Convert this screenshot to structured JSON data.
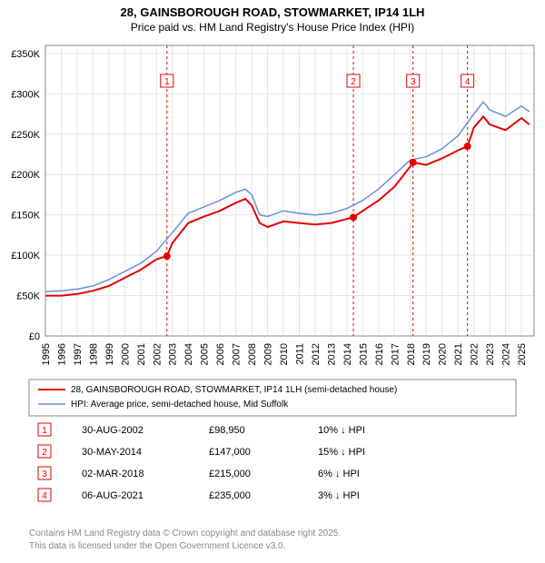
{
  "title_line1": "28, GAINSBOROUGH ROAD, STOWMARKET, IP14 1LH",
  "title_line2": "Price paid vs. HM Land Registry's House Price Index (HPI)",
  "chart": {
    "type": "line",
    "background_color": "#ffffff",
    "grid_color": "#e6e6e6",
    "plot_border_color": "#888888",
    "x_years": [
      1995,
      1996,
      1997,
      1998,
      1999,
      2000,
      2001,
      2002,
      2003,
      2004,
      2005,
      2006,
      2007,
      2008,
      2009,
      2010,
      2011,
      2012,
      2013,
      2014,
      2015,
      2016,
      2017,
      2018,
      2019,
      2020,
      2021,
      2022,
      2023,
      2024,
      2025
    ],
    "xlim": [
      1995,
      2025.8
    ],
    "ylim": [
      0,
      360000
    ],
    "y_ticks": [
      0,
      50000,
      100000,
      150000,
      200000,
      250000,
      300000,
      350000
    ],
    "y_tick_labels": [
      "£0",
      "£50K",
      "£100K",
      "£150K",
      "£200K",
      "£250K",
      "£300K",
      "£350K"
    ],
    "series": [
      {
        "name": "28, GAINSBOROUGH ROAD, STOWMARKET, IP14 1LH (semi-detached house)",
        "color": "#e60000",
        "line_width": 2,
        "data": [
          [
            1995,
            50000
          ],
          [
            1996,
            50000
          ],
          [
            1997,
            52000
          ],
          [
            1998,
            56000
          ],
          [
            1999,
            62000
          ],
          [
            2000,
            72000
          ],
          [
            2001,
            82000
          ],
          [
            2002,
            95000
          ],
          [
            2002.66,
            98950
          ],
          [
            2003,
            115000
          ],
          [
            2004,
            140000
          ],
          [
            2005,
            148000
          ],
          [
            2006,
            155000
          ],
          [
            2007,
            165000
          ],
          [
            2007.6,
            170000
          ],
          [
            2008,
            162000
          ],
          [
            2008.5,
            140000
          ],
          [
            2009,
            135000
          ],
          [
            2010,
            142000
          ],
          [
            2011,
            140000
          ],
          [
            2012,
            138000
          ],
          [
            2013,
            140000
          ],
          [
            2014,
            145000
          ],
          [
            2014.41,
            147000
          ],
          [
            2015,
            155000
          ],
          [
            2016,
            168000
          ],
          [
            2017,
            185000
          ],
          [
            2018,
            210000
          ],
          [
            2018.17,
            215000
          ],
          [
            2019,
            212000
          ],
          [
            2020,
            220000
          ],
          [
            2021,
            230000
          ],
          [
            2021.6,
            235000
          ],
          [
            2022,
            258000
          ],
          [
            2022.6,
            272000
          ],
          [
            2023,
            262000
          ],
          [
            2024,
            255000
          ],
          [
            2025,
            270000
          ],
          [
            2025.5,
            262000
          ]
        ]
      },
      {
        "name": "HPI: Average price, semi-detached house, Mid Suffolk",
        "color": "#6a8fd8",
        "line_width": 1.5,
        "data": [
          [
            1995,
            55000
          ],
          [
            1996,
            56000
          ],
          [
            1997,
            58000
          ],
          [
            1998,
            62000
          ],
          [
            1999,
            70000
          ],
          [
            2000,
            80000
          ],
          [
            2001,
            90000
          ],
          [
            2002,
            105000
          ],
          [
            2003,
            128000
          ],
          [
            2004,
            152000
          ],
          [
            2005,
            160000
          ],
          [
            2006,
            168000
          ],
          [
            2007,
            178000
          ],
          [
            2007.6,
            182000
          ],
          [
            2008,
            175000
          ],
          [
            2008.5,
            150000
          ],
          [
            2009,
            148000
          ],
          [
            2010,
            155000
          ],
          [
            2011,
            152000
          ],
          [
            2012,
            150000
          ],
          [
            2013,
            152000
          ],
          [
            2014,
            158000
          ],
          [
            2015,
            168000
          ],
          [
            2016,
            182000
          ],
          [
            2017,
            200000
          ],
          [
            2018,
            218000
          ],
          [
            2019,
            222000
          ],
          [
            2020,
            232000
          ],
          [
            2021,
            248000
          ],
          [
            2022,
            275000
          ],
          [
            2022.6,
            290000
          ],
          [
            2023,
            280000
          ],
          [
            2024,
            272000
          ],
          [
            2025,
            285000
          ],
          [
            2025.5,
            278000
          ]
        ]
      }
    ],
    "sale_markers": [
      {
        "n": 1,
        "year": 2002.66,
        "price": 98950
      },
      {
        "n": 2,
        "year": 2014.41,
        "price": 147000
      },
      {
        "n": 3,
        "year": 2018.17,
        "price": 215000
      },
      {
        "n": 4,
        "year": 2021.6,
        "price": 235000
      }
    ],
    "marker_dash_color": "#e60000",
    "marker_label_top_y": 315000
  },
  "legend": {
    "items": [
      {
        "color": "#e60000",
        "width": 2,
        "label": "28, GAINSBOROUGH ROAD, STOWMARKET, IP14 1LH (semi-detached house)"
      },
      {
        "color": "#6a8fd8",
        "width": 1.5,
        "label": "HPI: Average price, semi-detached house, Mid Suffolk"
      }
    ]
  },
  "sales_table": {
    "rows": [
      {
        "n": "1",
        "date": "30-AUG-2002",
        "price": "£98,950",
        "delta": "10% ↓ HPI"
      },
      {
        "n": "2",
        "date": "30-MAY-2014",
        "price": "£147,000",
        "delta": "15% ↓ HPI"
      },
      {
        "n": "3",
        "date": "02-MAR-2018",
        "price": "£215,000",
        "delta": "6% ↓ HPI"
      },
      {
        "n": "4",
        "date": "06-AUG-2021",
        "price": "£235,000",
        "delta": "3% ↓ HPI"
      }
    ]
  },
  "footer_line1": "Contains HM Land Registry data © Crown copyright and database right 2025.",
  "footer_line2": "This data is licensed under the Open Government Licence v3.0."
}
